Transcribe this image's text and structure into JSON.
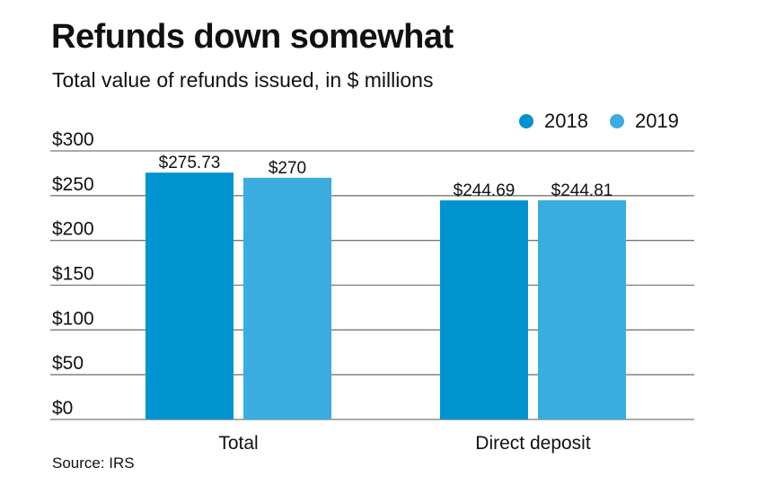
{
  "title": "Refunds down somewhat",
  "subtitle": "Total value of refunds issued, in $ millions",
  "source": "Source: IRS",
  "chart_data": {
    "type": "bar",
    "categories": [
      "Total",
      "Direct deposit"
    ],
    "series": [
      {
        "name": "2018",
        "values": [
          275.73,
          244.69
        ],
        "labels": [
          "$275.73",
          "$244.69"
        ],
        "color": "#0093CF"
      },
      {
        "name": "2019",
        "values": [
          270,
          244.81
        ],
        "labels": [
          "$270",
          "$244.81"
        ],
        "color": "#3BACDF"
      }
    ],
    "ylim": [
      0,
      300
    ],
    "yticks": [
      0,
      50,
      100,
      150,
      200,
      250,
      300
    ],
    "ytick_labels": [
      "$0",
      "$50",
      "$100",
      "$150",
      "$200",
      "$250",
      "$300"
    ],
    "grid": true,
    "legend": "top-right"
  }
}
